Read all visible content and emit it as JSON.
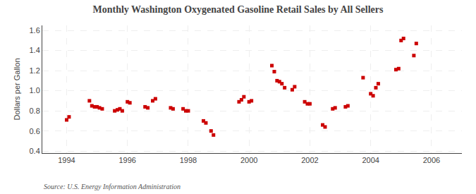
{
  "chart_data": {
    "type": "scatter",
    "title": "Monthly Washington Oxygenated Gasoline Retail Sales by All Sellers",
    "ylabel": "Dollars per Gallon",
    "annotations": [
      "Source: U.S. Energy Information Administration"
    ],
    "color": "#cc0000",
    "marker": "square",
    "grid": true,
    "xlim": [
      1993.2,
      2007.0
    ],
    "ylim": [
      0.38,
      1.65
    ],
    "xticks": [
      1994,
      1996,
      1998,
      2000,
      2002,
      2004,
      2006
    ],
    "yticks": [
      0.4,
      0.6,
      0.8,
      {
        "value": 1.0,
        "label": "1.0"
      },
      1.2,
      1.4,
      1.6
    ],
    "x": [
      1994.0,
      1994.08,
      1994.75,
      1994.83,
      1994.92,
      1995.0,
      1995.08,
      1995.17,
      1995.58,
      1995.67,
      1995.75,
      1995.83,
      1996.0,
      1996.08,
      1996.58,
      1996.67,
      1996.83,
      1996.92,
      1997.42,
      1997.5,
      1997.83,
      1997.92,
      1998.0,
      1998.5,
      1998.58,
      1998.75,
      1998.83,
      1999.67,
      1999.75,
      1999.83,
      2000.0,
      2000.08,
      2000.75,
      2000.83,
      2000.92,
      2001.0,
      2001.08,
      2001.17,
      2001.42,
      2001.5,
      2001.83,
      2001.92,
      2002.0,
      2002.42,
      2002.5,
      2002.75,
      2002.83,
      2003.17,
      2003.25,
      2003.75,
      2004.0,
      2004.08,
      2004.17,
      2004.25,
      2004.83,
      2004.92,
      2005.0,
      2005.08,
      2005.42,
      2005.5
    ],
    "values": [
      0.71,
      0.74,
      0.9,
      0.85,
      0.84,
      0.84,
      0.83,
      0.82,
      0.8,
      0.81,
      0.82,
      0.8,
      0.89,
      0.88,
      0.84,
      0.83,
      0.9,
      0.92,
      0.83,
      0.82,
      0.82,
      0.8,
      0.8,
      0.7,
      0.68,
      0.6,
      0.56,
      0.89,
      0.91,
      0.94,
      0.89,
      0.9,
      1.25,
      1.19,
      1.1,
      1.09,
      1.07,
      1.03,
      1.01,
      1.04,
      0.89,
      0.87,
      0.87,
      0.66,
      0.64,
      0.82,
      0.83,
      0.84,
      0.85,
      1.13,
      0.97,
      0.95,
      1.03,
      1.07,
      1.21,
      1.22,
      1.5,
      1.52,
      1.35,
      1.47
    ]
  }
}
